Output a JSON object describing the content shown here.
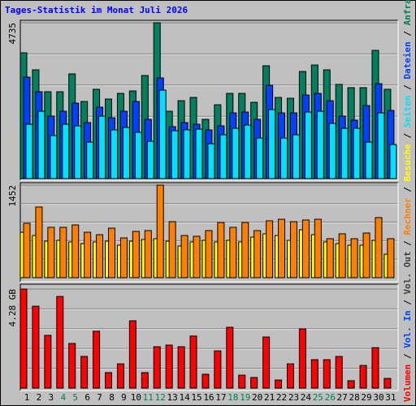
{
  "chart_data": [
    {
      "type": "bar",
      "title": "Tages-Statistik im Monat Juli 2026",
      "ylim": [
        0,
        4735
      ],
      "yticks": [
        4735
      ],
      "series": [
        {
          "name": "Anfragen",
          "color": "#00805c",
          "values": [
            3822,
            3304,
            2639,
            2639,
            3181,
            2343,
            2713,
            2417,
            2589,
            2663,
            3132,
            4735,
            2047,
            2367,
            2466,
            1800,
            2244,
            2589,
            2589,
            2318,
            3428,
            2466,
            2441,
            3255,
            3452,
            3304,
            2861,
            2762,
            2762,
            3896,
            2713
          ]
        },
        {
          "name": "Dateien",
          "color": "#0040ff",
          "values": [
            3083,
            2639,
            1899,
            2047,
            2293,
            1702,
            2170,
            1850,
            2047,
            2343,
            1800,
            3058,
            1578,
            1702,
            1652,
            1480,
            1603,
            1997,
            2022,
            1800,
            2836,
            1997,
            1997,
            2540,
            2589,
            2367,
            1899,
            1776,
            2219,
            2885,
            2071
          ]
        },
        {
          "name": "Seiten",
          "color": "#00e0ff",
          "values": [
            1652,
            2047,
            1307,
            1652,
            1603,
            1110,
            1899,
            1480,
            1554,
            1406,
            1134,
            2688,
            1455,
            1480,
            1504,
            1060,
            1332,
            1529,
            1628,
            1233,
            2096,
            1233,
            1332,
            2022,
            2047,
            1677,
            1529,
            1529,
            1110,
            1997,
            1036
          ]
        }
      ]
    },
    {
      "type": "bar",
      "ylim": [
        0,
        1452
      ],
      "yticks": [
        1452
      ],
      "series": [
        {
          "name": "Besuche",
          "color": "#ffff00",
          "values": [
            713,
            662,
            573,
            586,
            561,
            535,
            561,
            573,
            510,
            573,
            599,
            612,
            573,
            497,
            561,
            586,
            561,
            586,
            561,
            637,
            688,
            662,
            586,
            752,
            675,
            561,
            535,
            510,
            510,
            586,
            369
          ]
        },
        {
          "name": "Rechner",
          "color": "#ff8000",
          "values": [
            854,
            1108,
            790,
            790,
            828,
            713,
            675,
            777,
            624,
            726,
            739,
            1452,
            879,
            662,
            650,
            739,
            866,
            790,
            866,
            739,
            892,
            917,
            879,
            905,
            917,
            612,
            688,
            612,
            701,
            943,
            612
          ]
        }
      ]
    },
    {
      "type": "bar",
      "ylim": [
        0,
        4.28
      ],
      "yticks": [
        {
          "value": 4.28,
          "label": "4.28 GB"
        }
      ],
      "categories": [
        "1",
        "2",
        "3",
        "4",
        "5",
        "6",
        "7",
        "8",
        "9",
        "10",
        "11",
        "12",
        "13",
        "14",
        "15",
        "16",
        "17",
        "18",
        "19",
        "20",
        "21",
        "22",
        "23",
        "24",
        "25",
        "26",
        "27",
        "28",
        "29",
        "30",
        "31"
      ],
      "category_colors": [
        "#000000",
        "#000000",
        "#000000",
        "#00805c",
        "#00805c",
        "#000000",
        "#000000",
        "#000000",
        "#000000",
        "#000000",
        "#00805c",
        "#00805c",
        "#000000",
        "#000000",
        "#000000",
        "#000000",
        "#000000",
        "#00805c",
        "#00805c",
        "#000000",
        "#000000",
        "#000000",
        "#000000",
        "#000000",
        "#00805c",
        "#00805c",
        "#000000",
        "#000000",
        "#000000",
        "#000000",
        "#000000"
      ],
      "series": [
        {
          "name": "Volumen",
          "color": "#ff0000",
          "values": [
            4.28,
            3.54,
            2.28,
            3.96,
            1.93,
            1.37,
            2.46,
            0.67,
            1.05,
            2.91,
            0.67,
            1.79,
            1.86,
            1.79,
            2.25,
            0.6,
            1.61,
            2.63,
            0.56,
            0.46,
            2.21,
            0.35,
            1.05,
            2.56,
            1.23,
            1.23,
            1.37,
            0.32,
            0.98,
            1.75,
            0.42
          ]
        }
      ],
      "legend_extra": [
        {
          "name": "Vol. In",
          "color": "#0040ff"
        },
        {
          "name": "Vol. Out",
          "color": "#404040"
        }
      ]
    }
  ],
  "separator": "/"
}
